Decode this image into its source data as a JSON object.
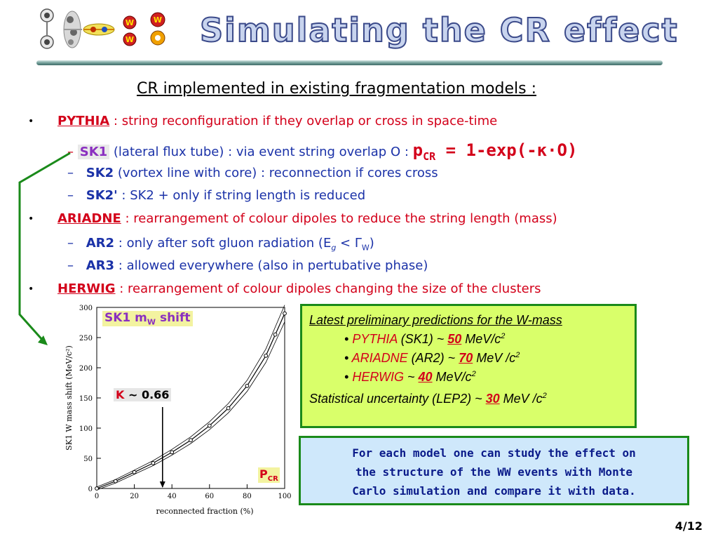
{
  "header": {
    "title": "Simulating the CR effect",
    "logo_glyphs": [
      "W",
      "W",
      "W"
    ]
  },
  "subtitle": "CR implemented in existing fragmentation models :",
  "bullets": {
    "pythia": {
      "name": "PYTHIA",
      "text": " : string reconfiguration if they overlap or cross in space-time",
      "sub": [
        {
          "dash": "–",
          "label": "SK1",
          "text": " (lateral flux tube) : via event string overlap O : ",
          "formula_p": "p",
          "formula_sub": "CR",
          "formula_rest": " = 1-exp(-κ·O)"
        },
        {
          "dash": "–",
          "label": "SK2",
          "text": " (vortex line with core) : reconnection if cores cross"
        },
        {
          "dash": "–",
          "label": "SK2'",
          "text": " : SK2 + only if string length is reduced"
        }
      ]
    },
    "ariadne": {
      "name": "ARIADNE",
      "text": " : rearrangement of colour dipoles to reduce the string length (mass)",
      "sub": [
        {
          "dash": "–",
          "label": "AR2",
          "text_before": " : only after soft gluon radiation (E",
          "text_sub1": "g",
          "text_mid": " < Γ",
          "text_sub2": "W",
          "text_after": ")"
        },
        {
          "dash": "–",
          "label": "AR3",
          "text": " : allowed everywhere (also in pertubative phase)"
        }
      ]
    },
    "herwig": {
      "name": "HERWIG",
      "text": " : rearrangement of colour dipoles changing the size of the clusters"
    }
  },
  "plot": {
    "annotation_title": "SK1 m",
    "annotation_sub": "W",
    "annotation_rest": " shift",
    "k_label": "K",
    "k_value": " ~ 0.66",
    "pcr_label": "P",
    "pcr_sub": "CR",
    "ylabel": "SK1 W mass shift (MeV/c²)",
    "xlabel": "reconnected fraction (%)",
    "xticks": [
      "0",
      "20",
      "40",
      "60",
      "80",
      "100"
    ],
    "yticks": [
      "0",
      "50",
      "100",
      "150",
      "200",
      "250",
      "300"
    ]
  },
  "chart_data": {
    "type": "line",
    "title": "",
    "xlabel": "reconnected fraction (%)",
    "ylabel": "SK1 W mass shift (MeV/c²)",
    "xlim": [
      0,
      100
    ],
    "ylim": [
      0,
      300
    ],
    "grid": false,
    "x": [
      0,
      10,
      20,
      30,
      40,
      50,
      60,
      70,
      80,
      90,
      95,
      100
    ],
    "series": [
      {
        "name": "",
        "values": [
          0,
          12,
          27,
          42,
          60,
          80,
          104,
          133,
          170,
          220,
          255,
          290
        ]
      }
    ],
    "annotations": [
      {
        "text": "K ~ 0.66",
        "x": 35
      }
    ]
  },
  "green_box": {
    "heading": "Latest preliminary predictions for the W-mass",
    "items": [
      {
        "bullet": "•",
        "model": "PYTHIA",
        "detail": " (SK1)  ~ ",
        "value": "50",
        "unit": " MeV/c",
        "sup": "2"
      },
      {
        "bullet": "•",
        "model": "ARIADNE",
        "detail": " (AR2) ~ ",
        "value": "70",
        "unit": " MeV /c",
        "sup": "2"
      },
      {
        "bullet": "•",
        "model": "HERWIG",
        "detail": " ~ ",
        "value": "40",
        "unit": " MeV/c",
        "sup": "2"
      }
    ],
    "stat_text": "Statistical uncertainty (LEP2) ~ ",
    "stat_value": "30",
    "stat_unit": " MeV /c",
    "stat_sup": "2"
  },
  "blue_box": {
    "lines": [
      "For each model one can study the effect on",
      "the structure of the WW events with Monte",
      "Carlo simulation and compare it with data."
    ]
  },
  "page_number": "4/12",
  "colors": {
    "red": "#d3001a",
    "blue": "#1b32a8",
    "green_box_bg": "#d9ff6a",
    "blue_box_bg": "#cfe8fb",
    "border_green": "#1a8a1a"
  }
}
